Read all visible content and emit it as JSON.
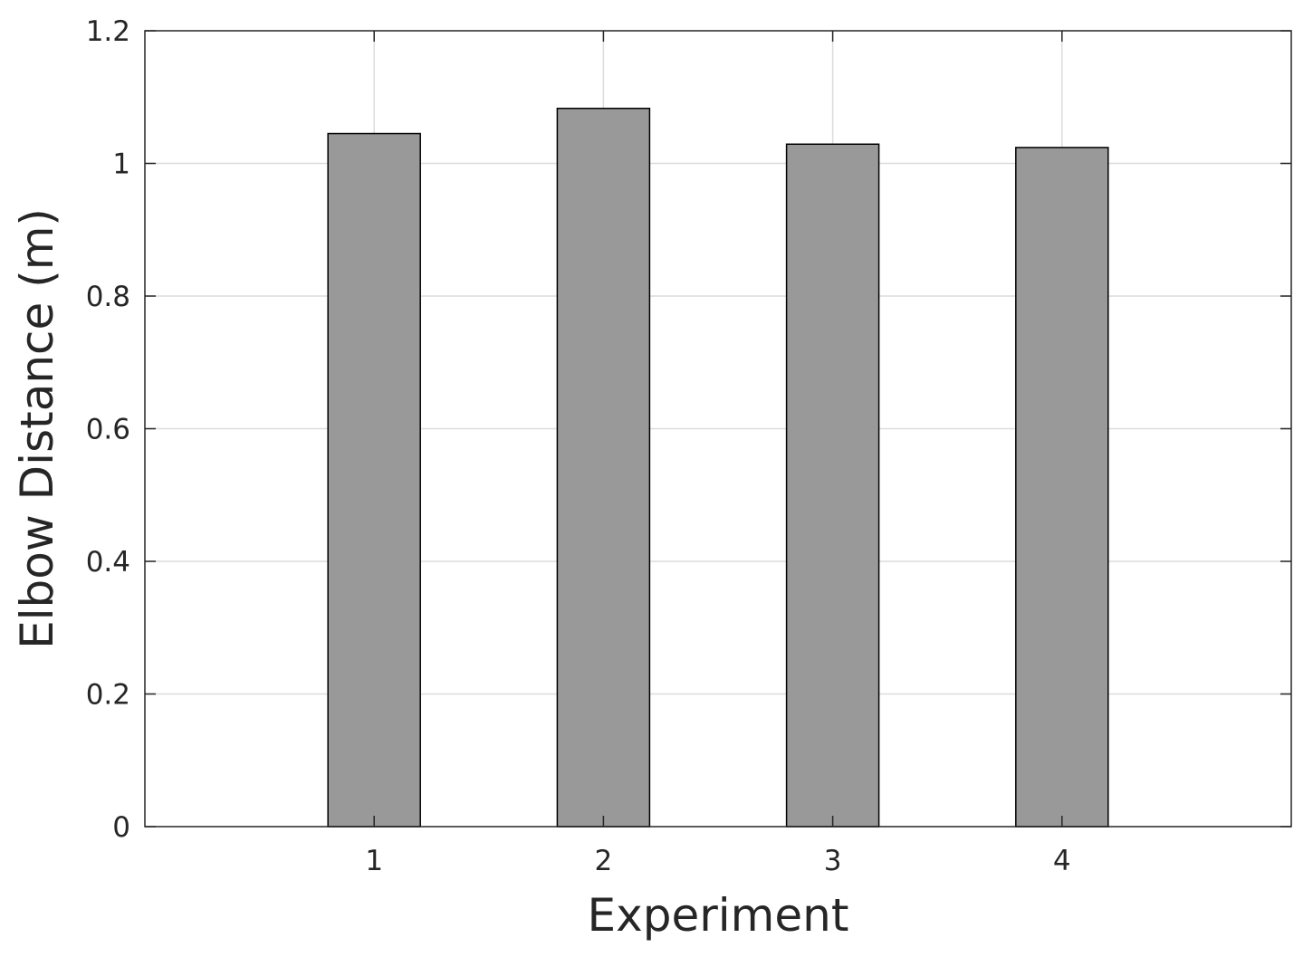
{
  "chart_data": {
    "type": "bar",
    "categories": [
      "1",
      "2",
      "3",
      "4"
    ],
    "values": [
      1.045,
      1.083,
      1.029,
      1.024
    ],
    "xlabel": "Experiment",
    "ylabel": "Elbow Distance (m)",
    "xlim": [
      0,
      5
    ],
    "ylim": [
      0,
      1.2
    ],
    "yticks": [
      "0",
      "0.2",
      "0.4",
      "0.6",
      "0.8",
      "1",
      "1.2"
    ],
    "grid": true,
    "bar_color": "#999999"
  }
}
